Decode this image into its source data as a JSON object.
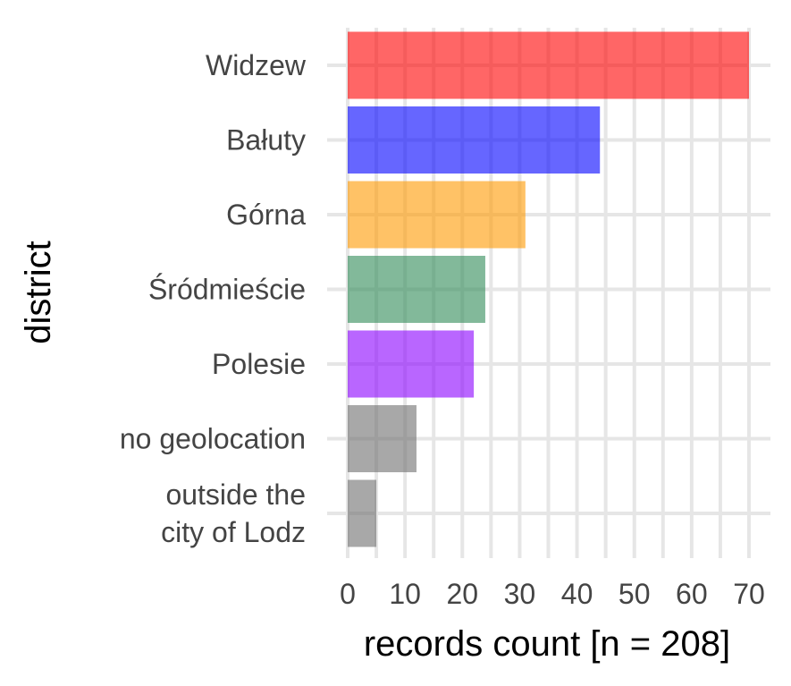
{
  "chart_data": {
    "type": "bar",
    "orientation": "horizontal",
    "categories": [
      [
        "Widzew"
      ],
      [
        "Bałuty"
      ],
      [
        "Górna"
      ],
      [
        "Śródmieście"
      ],
      [
        "Polesie"
      ],
      [
        "no geolocation"
      ],
      [
        "outside the",
        "city of Lodz"
      ]
    ],
    "values": [
      70,
      44,
      31,
      24,
      22,
      12,
      5
    ],
    "colors": [
      "#ff0000",
      "#0000ff",
      "#ff9900",
      "#2e8b57",
      "#8a00ff",
      "#6e6e6e",
      "#6e6e6e"
    ],
    "xlabel": "records count [n = 208]",
    "ylabel": "district",
    "xlim": [
      0,
      70
    ],
    "xticks": [
      0,
      10,
      20,
      30,
      40,
      50,
      60,
      70
    ],
    "grid": true,
    "legend": "none"
  }
}
